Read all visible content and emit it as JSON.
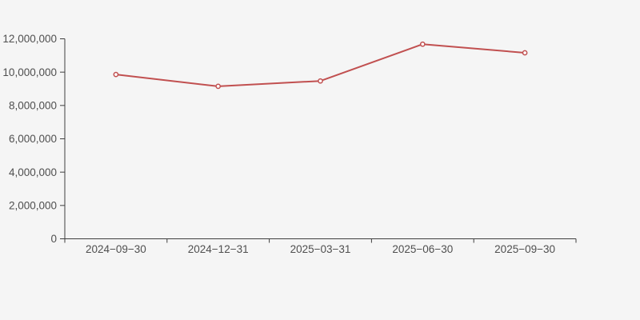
{
  "page": {
    "background": "#f5f5f5"
  },
  "chart_data": {
    "type": "line",
    "title": "",
    "xlabel": "",
    "ylabel": "",
    "categories": [
      "2024−09−30",
      "2024−12−31",
      "2025−03−31",
      "2025−06−30",
      "2025−09−30"
    ],
    "values": [
      9860000,
      9150000,
      9470000,
      11680000,
      11160000
    ],
    "ylim": [
      0,
      12000000
    ],
    "y_tick_step": 2000000,
    "y_tick_labels": [
      "0",
      "2,000,000",
      "4,000,000",
      "6,000,000",
      "8,000,000",
      "10,000,000",
      "12,000,000"
    ],
    "grid": false,
    "legend": "none",
    "line_color": "#c15050",
    "marker_fill": "#ffffff",
    "axis_color": "#3f3f3f",
    "label_color": "#4f4f4f"
  }
}
